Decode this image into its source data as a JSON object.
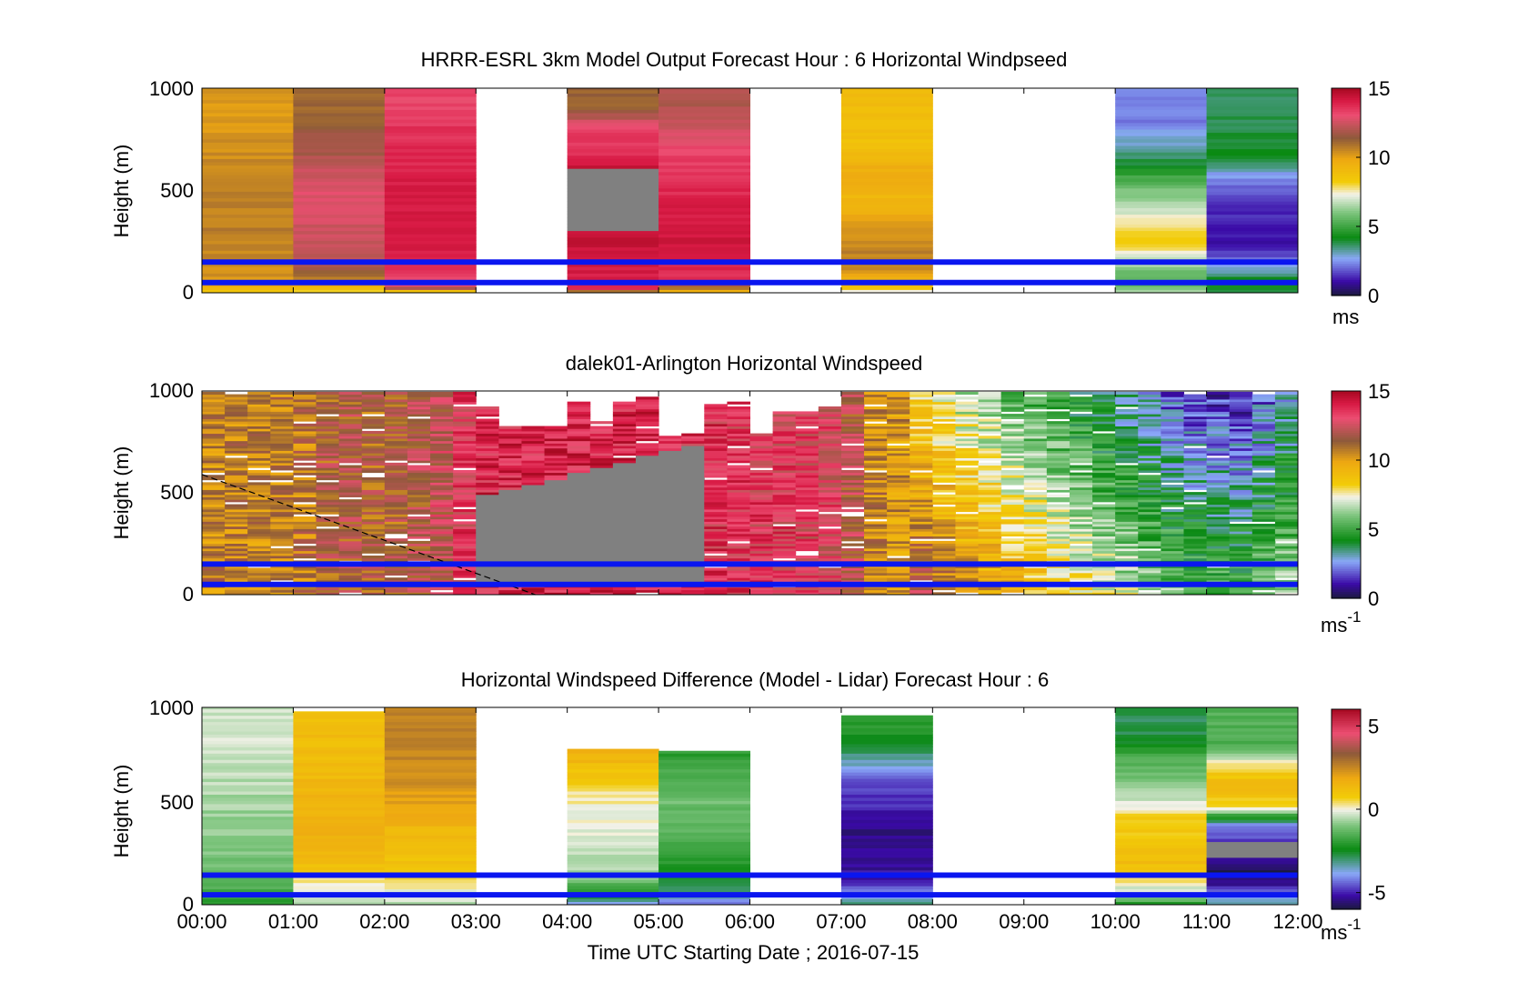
{
  "figure": {
    "xlabel": "Time UTC  Starting Date ; 2016-07-15",
    "x_ticks": [
      "00:00",
      "01:00",
      "02:00",
      "03:00",
      "04:00",
      "05:00",
      "06:00",
      "07:00",
      "08:00",
      "09:00",
      "10:00",
      "11:00",
      "12:00"
    ]
  },
  "chart_data": [
    {
      "type": "heatmap",
      "title": "HRRR-ESRL 3km Model Output   Forecast Hour : 6 Horizontal Windpseed",
      "ylabel": "Height (m)",
      "y_ticks": [
        "0",
        "500",
        "1000"
      ],
      "ylim": [
        0,
        1000
      ],
      "xlim": [
        0,
        12
      ],
      "colorbar": {
        "label": "ms",
        "label_sup": "",
        "ticks": [
          "0",
          "5",
          "10",
          "15"
        ],
        "range": [
          0,
          15
        ],
        "palette": "speed"
      },
      "reference_lines_m": [
        50,
        150
      ],
      "missing_hours": [
        3,
        6,
        8,
        9
      ],
      "columns": [
        {
          "hour": 0,
          "bins": [
            [
              0,
              8.2
            ],
            [
              20,
              9
            ],
            [
              50,
              10.2
            ],
            [
              150,
              10.5
            ],
            [
              300,
              10.7
            ],
            [
              500,
              10.6
            ],
            [
              700,
              10.4
            ],
            [
              850,
              10.2
            ]
          ]
        },
        {
          "hour": 1,
          "bins": [
            [
              0,
              7.5
            ],
            [
              40,
              10
            ],
            [
              150,
              12.2
            ],
            [
              300,
              12.5
            ],
            [
              500,
              12.9
            ],
            [
              700,
              11.8
            ],
            [
              900,
              11.2
            ]
          ]
        },
        {
          "hour": 2,
          "bins": [
            [
              0,
              7.5
            ],
            [
              30,
              13
            ],
            [
              150,
              14
            ],
            [
              300,
              14.3
            ],
            [
              500,
              14.1
            ],
            [
              800,
              13.6
            ],
            [
              900,
              13.2
            ]
          ]
        },
        {
          "hour": 4,
          "bins": [
            [
              0,
              9
            ],
            [
              20,
              14
            ],
            [
              150,
              14.2
            ],
            [
              300,
              14.5
            ]
          ],
          "gray_band": [
            300,
            600
          ],
          "upper": [
            [
              600,
              14.5
            ],
            [
              700,
              13.6
            ],
            [
              800,
              13.4
            ],
            [
              900,
              11.2
            ]
          ]
        },
        {
          "hour": 5,
          "bins": [
            [
              0,
              9
            ],
            [
              60,
              13.5
            ],
            [
              200,
              14.4
            ],
            [
              350,
              14.2
            ],
            [
              500,
              13.8
            ],
            [
              700,
              13.2
            ],
            [
              900,
              12
            ]
          ]
        },
        {
          "hour": 7,
          "bins": [
            [
              0,
              6.8
            ],
            [
              30,
              9
            ],
            [
              150,
              10.8
            ],
            [
              300,
              10.2
            ],
            [
              450,
              9.3
            ],
            [
              600,
              9.6
            ],
            [
              750,
              8.8
            ],
            [
              900,
              9
            ]
          ]
        },
        {
          "hour": 10,
          "bins": [
            [
              0,
              7
            ],
            [
              50,
              5
            ],
            [
              150,
              6.6
            ],
            [
              250,
              8.5
            ],
            [
              350,
              7.5
            ],
            [
              500,
              6
            ],
            [
              600,
              4.5
            ],
            [
              700,
              3.2
            ],
            [
              840,
              2.3
            ]
          ]
        },
        {
          "hour": 11,
          "bins": [
            [
              0,
              3.5
            ],
            [
              50,
              4.5
            ],
            [
              150,
              2.2
            ],
            [
              250,
              1
            ],
            [
              450,
              1.5
            ],
            [
              550,
              2.2
            ],
            [
              660,
              4
            ],
            [
              900,
              3.7
            ]
          ]
        }
      ]
    },
    {
      "type": "heatmap",
      "title": "dalek01-Arlington  Horizontal Windspeed",
      "ylabel": "Height (m)",
      "y_ticks": [
        "0",
        "500",
        "1000"
      ],
      "ylim": [
        0,
        1000
      ],
      "xlim": [
        0,
        12
      ],
      "colorbar": {
        "label": "ms",
        "label_sup": "-1",
        "ticks": [
          "0",
          "5",
          "10",
          "15"
        ],
        "range": [
          0,
          15
        ],
        "palette": "speed"
      },
      "reference_lines_m": [
        50,
        150
      ],
      "dashed_line": {
        "start": [
          0,
          590
        ],
        "end": [
          3.65,
          0
        ]
      },
      "gray_region_hours": [
        2.9,
        5.3
      ],
      "speed_by_hour": [
        [
          0,
          10.6
        ],
        [
          1,
          10.6
        ],
        [
          1.5,
          11.8
        ],
        [
          2,
          11.2
        ],
        [
          2.6,
          12.2
        ],
        [
          3,
          13.8
        ],
        [
          4,
          14
        ],
        [
          5,
          13.8
        ],
        [
          6,
          13.4
        ],
        [
          7,
          12.8
        ],
        [
          7.3,
          10.6
        ],
        [
          7.8,
          10
        ],
        [
          8.4,
          8.5
        ],
        [
          9,
          7.2
        ],
        [
          9.6,
          6
        ],
        [
          10.2,
          4.8
        ],
        [
          10.8,
          3.5
        ],
        [
          11.4,
          3.2
        ],
        [
          12,
          5
        ]
      ]
    },
    {
      "type": "heatmap",
      "title": "Horizontal Windspeed Difference (Model - Lidar) Forecast Hour : 6",
      "ylabel": "Height (m)",
      "y_ticks": [
        "0",
        "500",
        "1000"
      ],
      "ylim": [
        0,
        1000
      ],
      "xlim": [
        0,
        12
      ],
      "colorbar": {
        "label": "ms",
        "label_sup": "-1",
        "ticks": [
          "-5",
          "0",
          "5"
        ],
        "range": [
          -6,
          6
        ],
        "palette": "diff"
      },
      "reference_lines_m": [
        50,
        150
      ],
      "missing_hours": [
        3,
        6,
        8,
        9
      ],
      "columns": [
        {
          "hour": 0,
          "top": 1000,
          "bins": [
            [
              0,
              -2
            ],
            [
              100,
              -1.5
            ],
            [
              250,
              -1
            ],
            [
              400,
              -0.8
            ],
            [
              600,
              -0.5
            ],
            [
              800,
              -0.3
            ]
          ]
        },
        {
          "hour": 1,
          "top": 980,
          "bins": [
            [
              0,
              -0.5
            ],
            [
              100,
              0
            ],
            [
              200,
              1.2
            ],
            [
              350,
              1.6
            ],
            [
              550,
              1.5
            ],
            [
              700,
              1.3
            ],
            [
              850,
              1.2
            ]
          ]
        },
        {
          "hour": 2,
          "top": 1000,
          "bins": [
            [
              0,
              -0.5
            ],
            [
              100,
              0.2
            ],
            [
              200,
              1
            ],
            [
              400,
              1.5
            ],
            [
              600,
              2.3
            ],
            [
              800,
              2.6
            ]
          ]
        },
        {
          "hour": 4,
          "top": 790,
          "bins": [
            [
              0,
              -4
            ],
            [
              50,
              -2.5
            ],
            [
              150,
              -0.6
            ],
            [
              350,
              -0.2
            ],
            [
              550,
              0.2
            ],
            [
              650,
              0.9
            ],
            [
              750,
              1.5
            ]
          ]
        },
        {
          "hour": 5,
          "top": 780,
          "bins": [
            [
              0,
              -4.6
            ],
            [
              50,
              -3.2
            ],
            [
              150,
              -2.2
            ],
            [
              350,
              -1.5
            ],
            [
              550,
              -1.1
            ],
            [
              750,
              -2
            ]
          ]
        },
        {
          "hour": 7,
          "top": 960,
          "bins": [
            [
              0,
              -3
            ],
            [
              50,
              -4
            ],
            [
              150,
              -5.2
            ],
            [
              400,
              -5.4
            ],
            [
              650,
              -4.3
            ],
            [
              800,
              -2.6
            ],
            [
              900,
              -2
            ]
          ]
        },
        {
          "hour": 10,
          "top": 1000,
          "bins": [
            [
              0,
              -2.2
            ],
            [
              50,
              -0.6
            ],
            [
              200,
              1.2
            ],
            [
              450,
              0.7
            ],
            [
              550,
              -0.6
            ],
            [
              750,
              -1.5
            ],
            [
              850,
              -2.8
            ]
          ]
        },
        {
          "hour": 11,
          "top": 1000,
          "bins": [
            [
              0,
              -3
            ],
            [
              50,
              -4.2
            ],
            [
              150,
              -6
            ],
            [
              300,
              -5
            ],
            [
              400,
              -4.2
            ],
            [
              500,
              0.5
            ],
            [
              600,
              1.4
            ],
            [
              700,
              0.5
            ],
            [
              800,
              -1.5
            ]
          ],
          "gray_band": [
            230,
            310
          ]
        }
      ]
    }
  ]
}
